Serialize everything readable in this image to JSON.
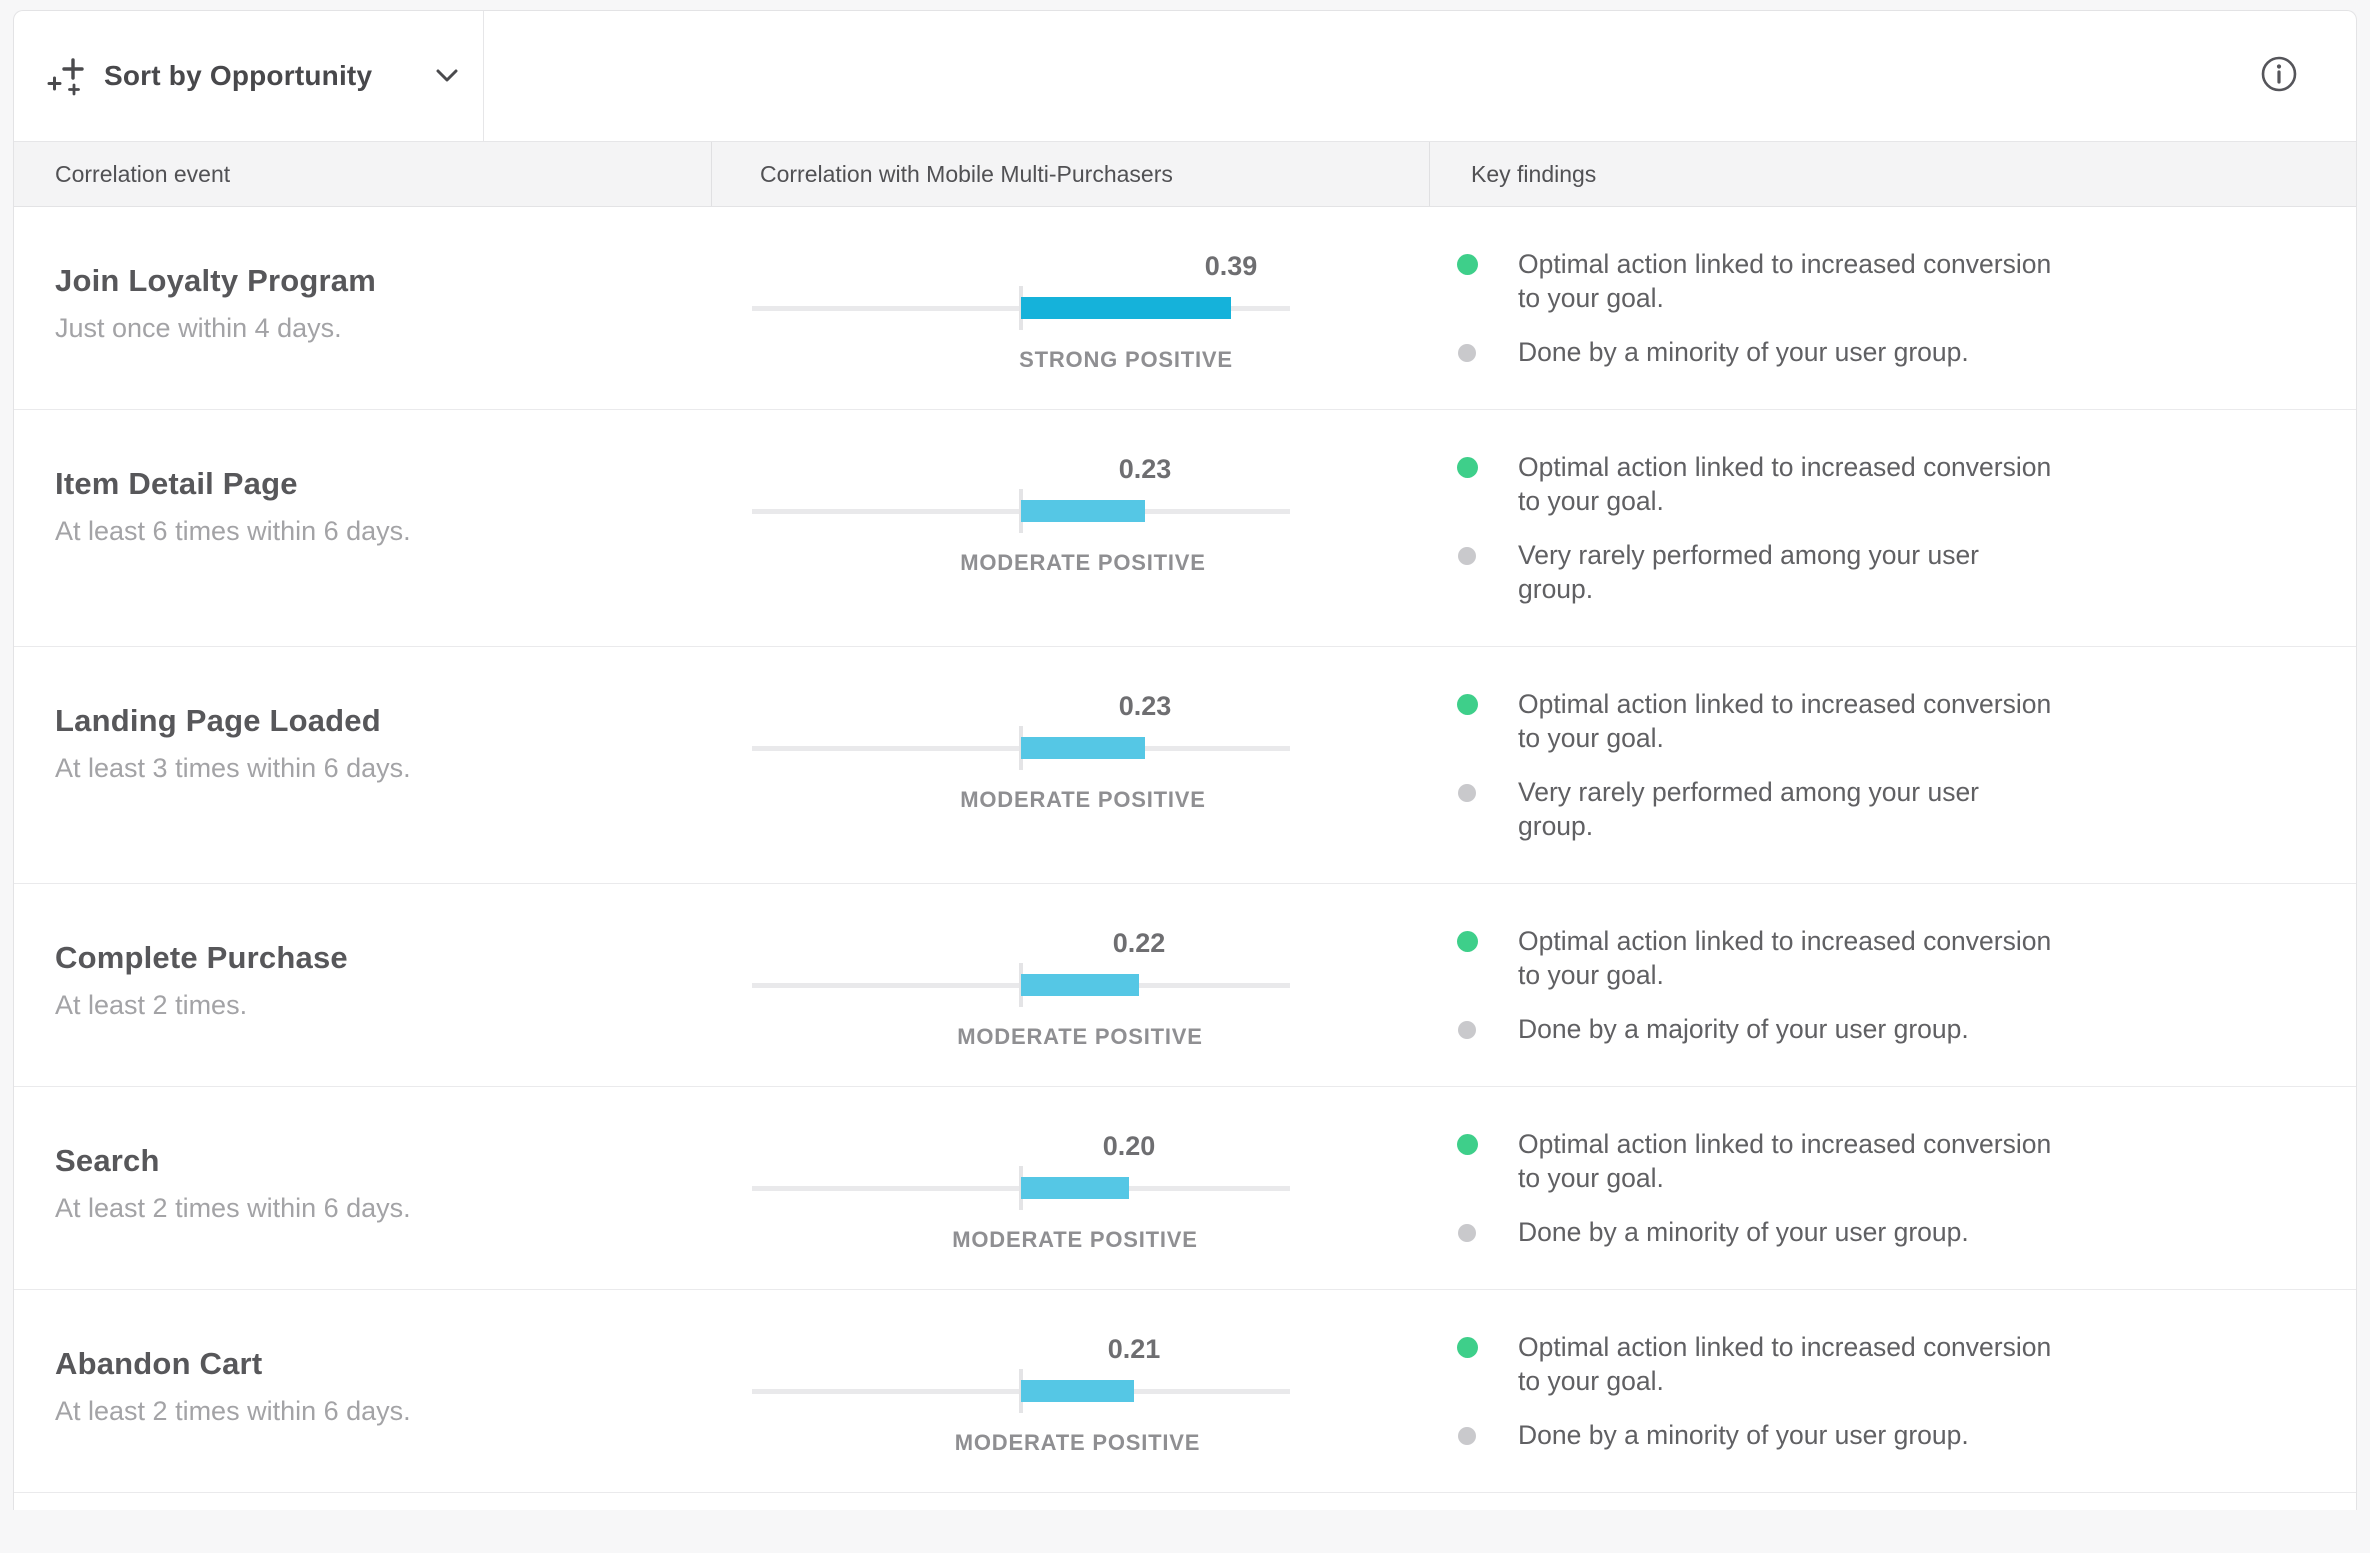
{
  "toolbar": {
    "sort_label": "Sort by Opportunity",
    "sort_icon": "sparkle-plus-icon",
    "info_icon": "info-icon"
  },
  "columns": {
    "event": "Correlation event",
    "correlation": "Correlation with Mobile Multi-Purchasers",
    "findings": "Key findings"
  },
  "correlation_scale": {
    "min": -0.5,
    "max": 0.5
  },
  "colors": {
    "strong_positive_bar": "#15b2da",
    "moderate_positive_bar": "#55c7e5",
    "positive_dot": "#3ecf8a",
    "neutral_dot": "#c9c9cc"
  },
  "rows": [
    {
      "event": "Join Loyalty Program",
      "criteria": "Just once within 4 days.",
      "value": 0.39,
      "value_label": "0.39",
      "strength": "STRONG POSITIVE",
      "strength_tone": "strong",
      "findings": [
        {
          "tone": "positive",
          "text": "Optimal action linked to increased conversion to your goal."
        },
        {
          "tone": "neutral",
          "text": "Done by a minority of your user group."
        }
      ]
    },
    {
      "event": "Item Detail Page",
      "criteria": "At least 6 times within 6 days.",
      "value": 0.23,
      "value_label": "0.23",
      "strength": "MODERATE POSITIVE",
      "strength_tone": "moderate",
      "findings": [
        {
          "tone": "positive",
          "text": "Optimal action linked to increased conversion to your goal."
        },
        {
          "tone": "neutral",
          "text": "Very rarely performed among your user group."
        }
      ]
    },
    {
      "event": "Landing Page Loaded",
      "criteria": "At least 3 times within 6 days.",
      "value": 0.23,
      "value_label": "0.23",
      "strength": "MODERATE POSITIVE",
      "strength_tone": "moderate",
      "findings": [
        {
          "tone": "positive",
          "text": "Optimal action linked to increased conversion to your goal."
        },
        {
          "tone": "neutral",
          "text": "Very rarely performed among your user group."
        }
      ]
    },
    {
      "event": "Complete Purchase",
      "criteria": "At least 2 times.",
      "value": 0.22,
      "value_label": "0.22",
      "strength": "MODERATE POSITIVE",
      "strength_tone": "moderate",
      "findings": [
        {
          "tone": "positive",
          "text": "Optimal action linked to increased conversion to your goal."
        },
        {
          "tone": "neutral",
          "text": "Done by a majority of your user group."
        }
      ]
    },
    {
      "event": "Search",
      "criteria": "At least 2 times within 6 days.",
      "value": 0.2,
      "value_label": "0.20",
      "strength": "MODERATE POSITIVE",
      "strength_tone": "moderate",
      "findings": [
        {
          "tone": "positive",
          "text": "Optimal action linked to increased conversion to your goal."
        },
        {
          "tone": "neutral",
          "text": "Done by a minority of your user group."
        }
      ]
    },
    {
      "event": "Abandon Cart",
      "criteria": "At least 2 times within 6 days.",
      "value": 0.21,
      "value_label": "0.21",
      "strength": "MODERATE POSITIVE",
      "strength_tone": "moderate",
      "findings": [
        {
          "tone": "positive",
          "text": "Optimal action linked to increased conversion to your goal."
        },
        {
          "tone": "neutral",
          "text": "Done by a minority of your user group."
        }
      ]
    }
  ],
  "chart_data": {
    "type": "bar",
    "title": "Correlation with Mobile Multi-Purchasers",
    "categories": [
      "Join Loyalty Program",
      "Item Detail Page",
      "Landing Page Loaded",
      "Complete Purchase",
      "Search",
      "Abandon Cart"
    ],
    "values": [
      0.39,
      0.23,
      0.23,
      0.22,
      0.2,
      0.21
    ],
    "labels": [
      "STRONG POSITIVE",
      "MODERATE POSITIVE",
      "MODERATE POSITIVE",
      "MODERATE POSITIVE",
      "MODERATE POSITIVE",
      "MODERATE POSITIVE"
    ],
    "xlim": [
      -0.5,
      0.5
    ],
    "orientation": "horizontal-diverging-from-zero"
  }
}
